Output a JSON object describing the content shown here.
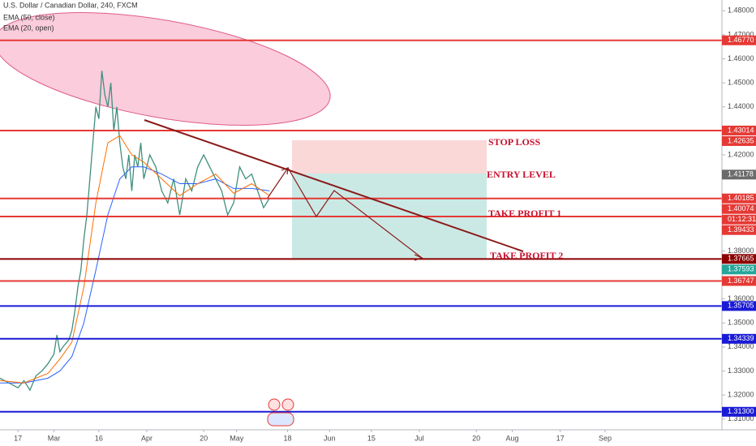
{
  "chart_data": {
    "type": "line",
    "title": "U.S. Dollar / Canadian Dollar, 240, FXCM",
    "xlim": [
      42,
      283
    ],
    "ylim": [
      1.3055,
      1.4845
    ],
    "xticks": [
      {
        "value": 48,
        "label": "17"
      },
      {
        "value": 60,
        "label": "Mar"
      },
      {
        "value": 75,
        "label": "16"
      },
      {
        "value": 91,
        "label": "Apr"
      },
      {
        "value": 110,
        "label": "20"
      },
      {
        "value": 121,
        "label": "May"
      },
      {
        "value": 138,
        "label": "18"
      },
      {
        "value": 152,
        "label": "Jun"
      },
      {
        "value": 166,
        "label": "15"
      },
      {
        "value": 182,
        "label": "Jul"
      },
      {
        "value": 201,
        "label": "20"
      },
      {
        "value": 213,
        "label": "Aug"
      },
      {
        "value": 229,
        "label": "17"
      },
      {
        "value": 244,
        "label": "Sep"
      }
    ],
    "yticks": [
      {
        "value": 1.48,
        "label": "1.48000"
      },
      {
        "value": 1.47,
        "label": "1.47000"
      },
      {
        "value": 1.46,
        "label": "1.46000"
      },
      {
        "value": 1.45,
        "label": "1.45000"
      },
      {
        "value": 1.44,
        "label": "1.44000"
      },
      {
        "value": 1.42,
        "label": "1.42000"
      },
      {
        "value": 1.38,
        "label": "1.38000"
      },
      {
        "value": 1.36,
        "label": "1.36000"
      },
      {
        "value": 1.35,
        "label": "1.35000"
      },
      {
        "value": 1.34,
        "label": "1.34000"
      },
      {
        "value": 1.33,
        "label": "1.33000"
      },
      {
        "value": 1.32,
        "label": "1.32000"
      },
      {
        "value": 1.31,
        "label": "1.31000"
      }
    ],
    "price": {
      "color": "#3f8f7e",
      "x": [
        42,
        45,
        48,
        50,
        52,
        54,
        56,
        58,
        60,
        61,
        62,
        63,
        65,
        66,
        67,
        68,
        69,
        70,
        71,
        72,
        73,
        74,
        75,
        76,
        77,
        78,
        79,
        80,
        81,
        82,
        83,
        84,
        85,
        86,
        87,
        88,
        89,
        90,
        92,
        94,
        96,
        98,
        100,
        102,
        104,
        106,
        108,
        110,
        112,
        114,
        116,
        118,
        120,
        122,
        124,
        126,
        128,
        130,
        132
      ],
      "values": [
        1.327,
        1.325,
        1.323,
        1.326,
        1.322,
        1.328,
        1.33,
        1.333,
        1.337,
        1.345,
        1.338,
        1.34,
        1.343,
        1.347,
        1.355,
        1.365,
        1.372,
        1.385,
        1.395,
        1.41,
        1.425,
        1.44,
        1.435,
        1.455,
        1.445,
        1.44,
        1.45,
        1.43,
        1.44,
        1.425,
        1.415,
        1.41,
        1.42,
        1.405,
        1.42,
        1.415,
        1.425,
        1.41,
        1.42,
        1.415,
        1.405,
        1.4,
        1.41,
        1.395,
        1.41,
        1.405,
        1.415,
        1.42,
        1.415,
        1.41,
        1.405,
        1.395,
        1.4,
        1.415,
        1.41,
        1.412,
        1.405,
        1.398,
        1.402
      ]
    },
    "series": [
      {
        "name": "EMA (50, close)",
        "color": "#2962ff",
        "x": [
          42,
          50,
          58,
          62,
          66,
          70,
          74,
          78,
          82,
          86,
          90,
          96,
          102,
          108,
          114,
          120,
          126,
          132
        ],
        "values": [
          1.325,
          1.325,
          1.327,
          1.33,
          1.336,
          1.35,
          1.372,
          1.395,
          1.41,
          1.415,
          1.415,
          1.412,
          1.408,
          1.408,
          1.41,
          1.406,
          1.406,
          1.405
        ]
      },
      {
        "name": "EMA (20, open)",
        "color": "#ff6d00",
        "x": [
          42,
          50,
          58,
          62,
          66,
          70,
          74,
          78,
          82,
          86,
          90,
          96,
          102,
          108,
          114,
          120,
          126,
          132
        ],
        "values": [
          1.326,
          1.325,
          1.329,
          1.335,
          1.342,
          1.365,
          1.4,
          1.425,
          1.428,
          1.42,
          1.417,
          1.41,
          1.403,
          1.408,
          1.412,
          1.404,
          1.408,
          1.403
        ]
      }
    ],
    "levels": [
      {
        "value": 1.4677,
        "label": "1.46770",
        "color": "#e53935"
      },
      {
        "value": 1.43014,
        "label": "1.43014",
        "color": "#e53935"
      },
      {
        "value": 1.40185,
        "label": "1.40185",
        "color": "#e53935"
      },
      {
        "value": 1.39433,
        "label": "1.39433",
        "color": "#e53935"
      },
      {
        "value": 1.37665,
        "label": "1.37665",
        "color": "#8b0000"
      },
      {
        "value": 1.36747,
        "label": "1.36747",
        "color": "#e53935"
      },
      {
        "value": 1.35705,
        "label": "1.35705",
        "color": "#1a1ad6"
      },
      {
        "value": 1.34339,
        "label": "1.34339",
        "color": "#1a1ad6"
      },
      {
        "value": 1.313,
        "label": "1.31300",
        "color": "#1a1ad6"
      }
    ],
    "price_tags": [
      {
        "value": 1.42635,
        "label": "1.42635",
        "color": "#e53935"
      },
      {
        "value": 1.41178,
        "label": "1.41178",
        "color": "#6b6b6b"
      },
      {
        "value": 1.40074,
        "label": "1.40074",
        "color": "#e53935"
      },
      {
        "value": 1.37593,
        "label": "1.37593",
        "color": "#26a69a"
      }
    ],
    "countdown": "01:12:31",
    "annotations": [
      "STOP LOSS",
      "ENTRY LEVEL",
      "TAKE PROFIT 1",
      "TAKE PROFIT 2"
    ]
  }
}
